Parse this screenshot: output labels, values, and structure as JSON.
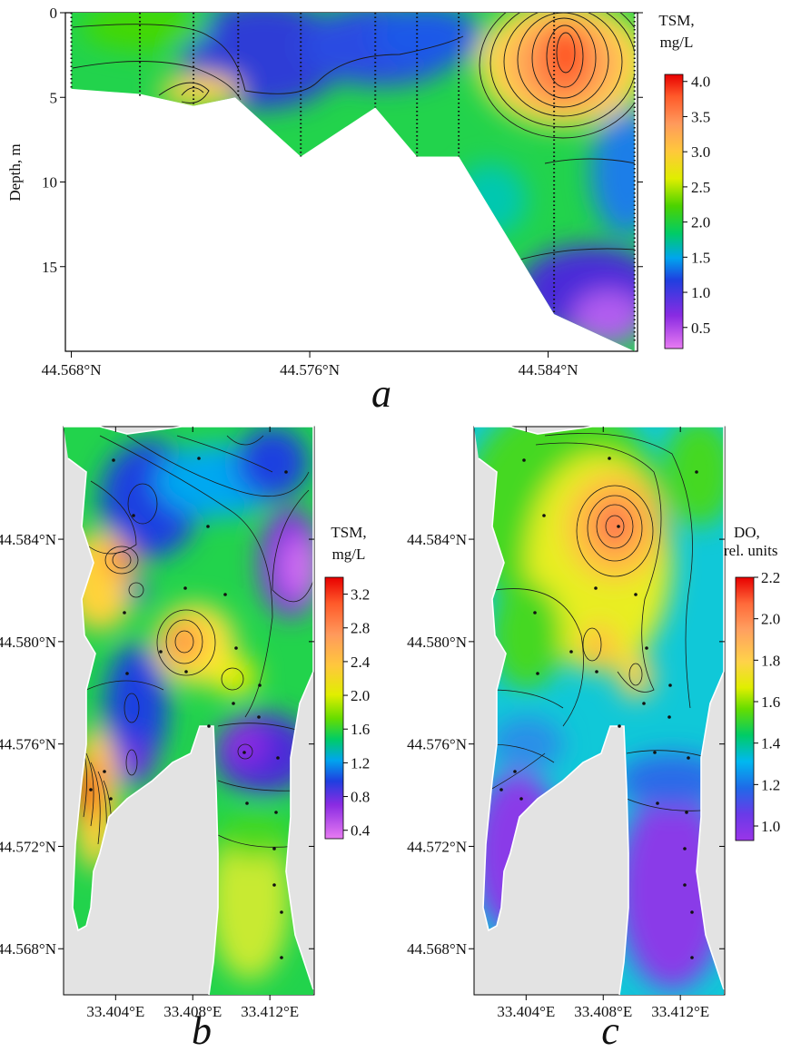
{
  "figure": {
    "panel_letters": [
      "a",
      "b",
      "c"
    ]
  },
  "chart_data": [
    {
      "panel": "a",
      "type": "heatmap",
      "description_kind": "depth transect",
      "xlabel": "",
      "ylabel": "Depth, m",
      "x_ticks": [
        "44.568°N",
        "44.576°N",
        "44.584°N"
      ],
      "y_ticks": [
        "0",
        "5",
        "10",
        "15"
      ],
      "xlim": [
        44.5678,
        44.587
      ],
      "ylim": [
        0,
        20
      ],
      "y_inverted": true,
      "colorbar": {
        "title": [
          "TSM,",
          "mg/L"
        ],
        "ticks": [
          "4.0",
          "3.5",
          "3.0",
          "2.5",
          "2.0",
          "1.5",
          "1.0",
          "0.5"
        ],
        "range": [
          0.2,
          4.1
        ]
      },
      "bottom_profile": [
        {
          "lat": 44.568,
          "depth": 4.5
        },
        {
          "lat": 44.5703,
          "depth": 4.8
        },
        {
          "lat": 44.5721,
          "depth": 5.5
        },
        {
          "lat": 44.5735,
          "depth": 5.0
        },
        {
          "lat": 44.5757,
          "depth": 8.5
        },
        {
          "lat": 44.5782,
          "depth": 5.6
        },
        {
          "lat": 44.5796,
          "depth": 8.5
        },
        {
          "lat": 44.581,
          "depth": 8.5
        },
        {
          "lat": 44.5842,
          "depth": 17.8
        },
        {
          "lat": 44.5869,
          "depth": 20.0
        }
      ],
      "stations": [
        {
          "lat": 44.568,
          "max_depth": 4.5
        },
        {
          "lat": 44.5703,
          "max_depth": 5.0
        },
        {
          "lat": 44.5721,
          "max_depth": 5.5
        },
        {
          "lat": 44.5736,
          "max_depth": 5.0
        },
        {
          "lat": 44.5757,
          "max_depth": 8.5
        },
        {
          "lat": 44.5782,
          "max_depth": 5.6
        },
        {
          "lat": 44.5796,
          "max_depth": 8.5
        },
        {
          "lat": 44.581,
          "max_depth": 8.5
        },
        {
          "lat": 44.5842,
          "max_depth": 17.8
        },
        {
          "lat": 44.5869,
          "max_depth": 19.5
        }
      ],
      "features": [
        {
          "lat": 44.5842,
          "depth": 2.5,
          "value": 3.9
        },
        {
          "lat": 44.5721,
          "depth": 4.8,
          "value": 2.4
        },
        {
          "lat": 44.5757,
          "depth": 3.0,
          "value": 0.8
        },
        {
          "lat": 44.58,
          "depth": 2.0,
          "value": 0.8
        },
        {
          "lat": 44.586,
          "depth": 16.0,
          "value": 0.3
        }
      ]
    },
    {
      "panel": "b",
      "type": "heatmap",
      "description_kind": "surface map",
      "x_ticks": [
        "33.404°E",
        "33.408°E",
        "33.412°E"
      ],
      "y_ticks": [
        "44.584°N",
        "44.580°N",
        "44.576°N",
        "44.572°N",
        "44.568°N"
      ],
      "xlim": [
        33.4013,
        33.4143
      ],
      "ylim": [
        44.5662,
        44.5884
      ],
      "colorbar": {
        "title": [
          "TSM,",
          "mg/L"
        ],
        "ticks": [
          "3.2",
          "2.8",
          "2.4",
          "2.0",
          "1.6",
          "1.2",
          "0.8",
          "0.4"
        ],
        "range": [
          0.3,
          3.4
        ]
      },
      "features": [
        {
          "lon": 33.4036,
          "lat": 44.5832,
          "value": 2.4
        },
        {
          "lon": 33.409,
          "lat": 44.58,
          "value": 2.2
        },
        {
          "lon": 33.4025,
          "lat": 44.5745,
          "value": 3.2
        },
        {
          "lon": 33.4102,
          "lat": 44.5777,
          "value": 1.7
        },
        {
          "lon": 33.4052,
          "lat": 44.5857,
          "value": 0.7
        },
        {
          "lon": 33.4043,
          "lat": 44.5817,
          "value": 0.8
        },
        {
          "lon": 33.4047,
          "lat": 44.5785,
          "value": 0.7
        },
        {
          "lon": 33.4047,
          "lat": 44.5758,
          "value": 0.8
        },
        {
          "lon": 33.4134,
          "lat": 44.5823,
          "value": 0.4
        },
        {
          "lon": 33.4125,
          "lat": 44.5757,
          "value": 0.5
        }
      ]
    },
    {
      "panel": "c",
      "type": "heatmap",
      "description_kind": "surface map",
      "x_ticks": [
        "33.404°E",
        "33.408°E",
        "33.412°E"
      ],
      "y_ticks": [
        "44.584°N",
        "44.580°N",
        "44.576°N",
        "44.572°N",
        "44.568°N"
      ],
      "xlim": [
        33.4013,
        33.4143
      ],
      "ylim": [
        44.5662,
        44.5884
      ],
      "colorbar": {
        "title": [
          "DO,",
          "rel. units"
        ],
        "ticks": [
          "2.2",
          "2.0",
          "1.8",
          "1.6",
          "1.4",
          "1.2",
          "1.0"
        ],
        "range": [
          0.93,
          2.2
        ]
      },
      "features": [
        {
          "lon": 33.4087,
          "lat": 44.584,
          "value": 2.1
        },
        {
          "lon": 33.407,
          "lat": 44.58,
          "value": 1.8
        },
        {
          "lon": 33.4097,
          "lat": 44.5777,
          "value": 1.6
        }
      ]
    }
  ]
}
